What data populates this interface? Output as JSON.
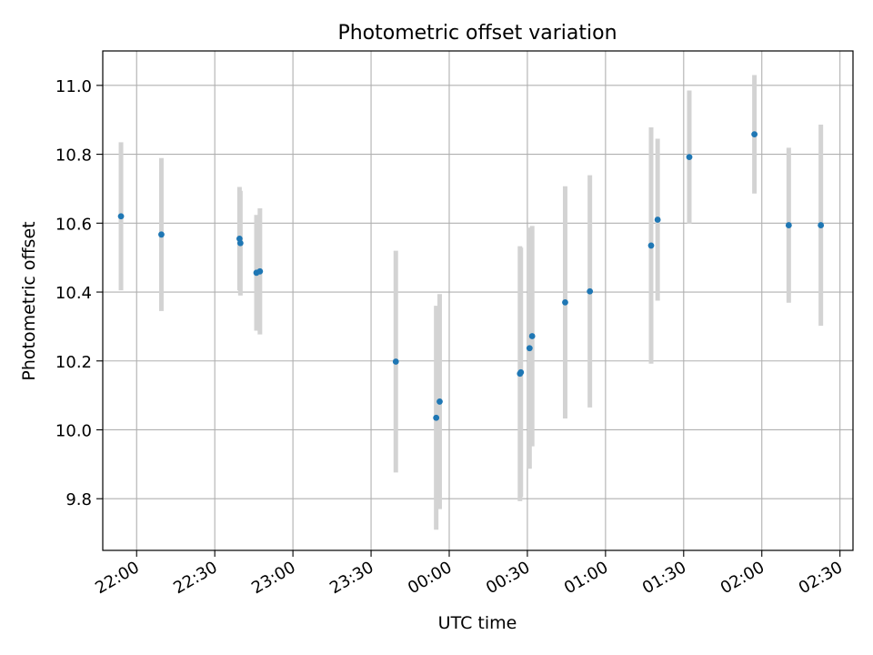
{
  "chart_data": {
    "type": "scatter",
    "title": "Photometric offset variation",
    "xlabel": "UTC time",
    "ylabel": "Photometric offset",
    "x_axis": "time",
    "grid": true,
    "ylim": [
      9.65,
      11.1
    ],
    "xlim": [
      "2000-01-01T21:47:00",
      "2000-01-02T02:35:00"
    ],
    "yticks": [
      9.8,
      10.0,
      10.2,
      10.4,
      10.6,
      10.8,
      11.0
    ],
    "ytick_labels": [
      "9.8",
      "10.0",
      "10.2",
      "10.4",
      "10.6",
      "10.8",
      "11.0"
    ],
    "xticks": [
      "2000-01-01T22:00:00",
      "2000-01-01T22:30:00",
      "2000-01-01T23:00:00",
      "2000-01-01T23:30:00",
      "2000-01-02T00:00:00",
      "2000-01-02T00:30:00",
      "2000-01-02T01:00:00",
      "2000-01-02T01:30:00",
      "2000-01-02T02:00:00",
      "2000-01-02T02:30:00"
    ],
    "xtick_labels": [
      "22:00",
      "22:30",
      "23:00",
      "23:30",
      "00:00",
      "00:30",
      "01:00",
      "01:30",
      "02:00",
      "02:30"
    ],
    "point_color": "#1f77b4",
    "errorbar_color": "#d3d3d3",
    "points": [
      {
        "x": "2000-01-01T21:54:00",
        "y": 10.62,
        "err": 0.215
      },
      {
        "x": "2000-01-01T22:09:30",
        "y": 10.567,
        "err": 0.222
      },
      {
        "x": "2000-01-01T22:39:30",
        "y": 10.555,
        "err": 0.15
      },
      {
        "x": "2000-01-01T22:39:50",
        "y": 10.542,
        "err": 0.152
      },
      {
        "x": "2000-01-01T22:46:00",
        "y": 10.456,
        "err": 0.168
      },
      {
        "x": "2000-01-01T22:47:20",
        "y": 10.46,
        "err": 0.183
      },
      {
        "x": "2000-01-01T23:39:30",
        "y": 10.198,
        "err": 0.322
      },
      {
        "x": "2000-01-01T23:55:00",
        "y": 10.035,
        "err": 0.325
      },
      {
        "x": "2000-01-01T23:56:20",
        "y": 10.082,
        "err": 0.312
      },
      {
        "x": "2000-01-02T00:27:10",
        "y": 10.163,
        "err": 0.37
      },
      {
        "x": "2000-01-02T00:27:30",
        "y": 10.167,
        "err": 0.362
      },
      {
        "x": "2000-01-02T00:30:50",
        "y": 10.237,
        "err": 0.35
      },
      {
        "x": "2000-01-02T00:31:50",
        "y": 10.272,
        "err": 0.32
      },
      {
        "x": "2000-01-02T00:44:30",
        "y": 10.37,
        "err": 0.337
      },
      {
        "x": "2000-01-02T00:54:00",
        "y": 10.402,
        "err": 0.337
      },
      {
        "x": "2000-01-02T01:17:30",
        "y": 10.535,
        "err": 0.343
      },
      {
        "x": "2000-01-02T01:20:00",
        "y": 10.61,
        "err": 0.235
      },
      {
        "x": "2000-01-02T01:32:10",
        "y": 10.792,
        "err": 0.193
      },
      {
        "x": "2000-01-02T01:57:10",
        "y": 10.858,
        "err": 0.172
      },
      {
        "x": "2000-01-02T02:10:20",
        "y": 10.594,
        "err": 0.225
      },
      {
        "x": "2000-01-02T02:22:40",
        "y": 10.594,
        "err": 0.292
      }
    ]
  }
}
